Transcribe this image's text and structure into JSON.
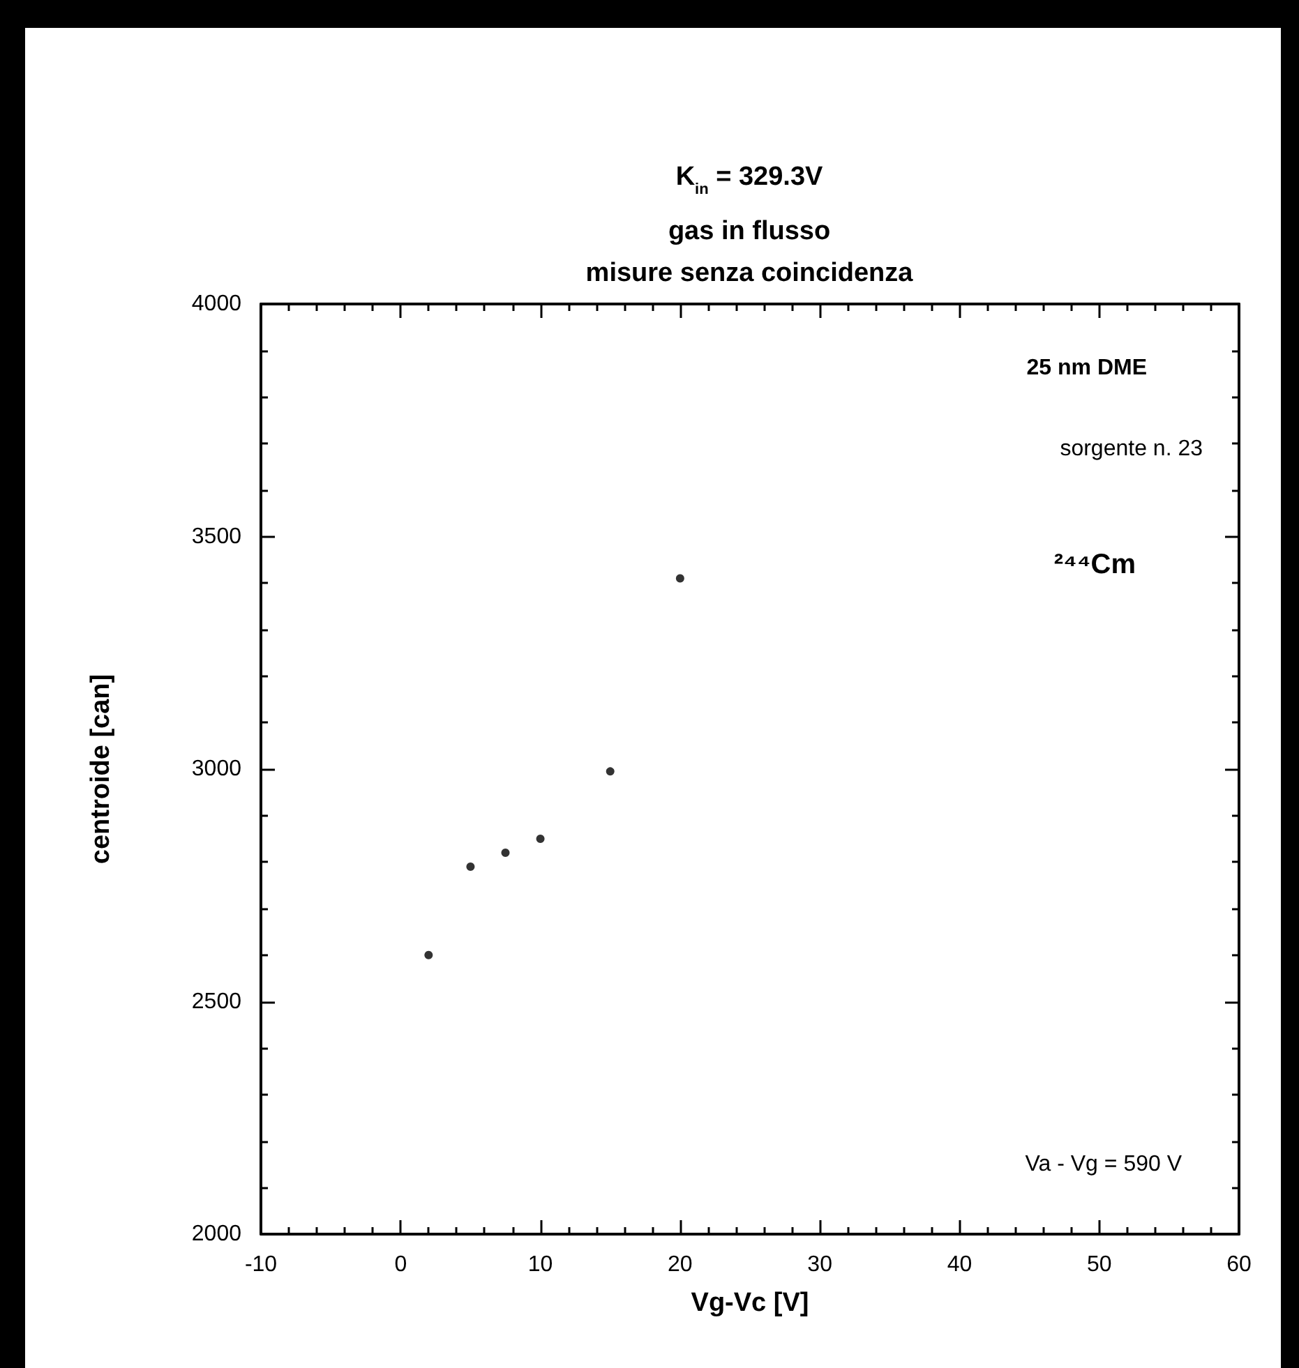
{
  "chart_data": {
    "type": "scatter",
    "title": "K$_{in}$ = 329.3V",
    "subtitle": "gas in flusso\nmisure senza coincidenza",
    "xlabel": "Vg-Vc [V]",
    "ylabel": "centroide [can]",
    "x": [
      2,
      5,
      7.5,
      10,
      15,
      20
    ],
    "values": [
      2600,
      2790,
      2820,
      2850,
      2995,
      3410
    ],
    "color": "#000000",
    "marker": "circle",
    "xlim": [
      -10,
      60
    ],
    "xticks": [
      -10,
      0,
      10,
      20,
      30,
      40,
      50,
      60
    ],
    "ylim": [
      2000,
      4000
    ],
    "yticks": [
      2000,
      2500,
      3000,
      3500,
      4000
    ],
    "grid": false,
    "annotations": [
      "25 nm DME",
      "sorgente n. 23",
      "²⁴⁴Cm",
      "Va - Vg = 590 V"
    ]
  }
}
